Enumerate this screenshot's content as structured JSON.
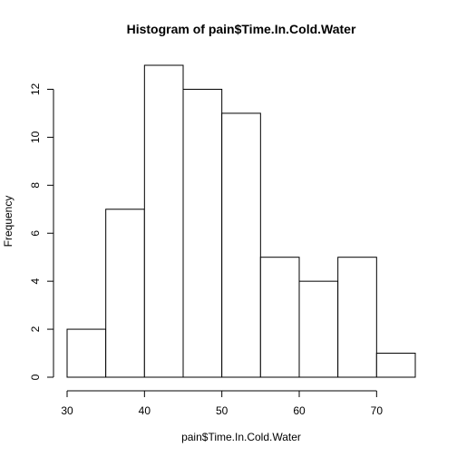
{
  "chart_data": {
    "type": "bar",
    "title": "Histogram of pain$Time.In.Cold.Water",
    "xlabel": "pain$Time.In.Cold.Water",
    "ylabel": "Frequency",
    "bins": [
      {
        "start": 30,
        "end": 35,
        "count": 2
      },
      {
        "start": 35,
        "end": 40,
        "count": 7
      },
      {
        "start": 40,
        "end": 45,
        "count": 13
      },
      {
        "start": 45,
        "end": 50,
        "count": 12
      },
      {
        "start": 50,
        "end": 55,
        "count": 11
      },
      {
        "start": 55,
        "end": 60,
        "count": 5
      },
      {
        "start": 60,
        "end": 65,
        "count": 4
      },
      {
        "start": 65,
        "end": 70,
        "count": 5
      },
      {
        "start": 70,
        "end": 75,
        "count": 1
      }
    ],
    "xlim": [
      30,
      75
    ],
    "ylim": [
      0,
      13
    ],
    "x_ticks": [
      30,
      40,
      50,
      60,
      70
    ],
    "y_ticks": [
      0,
      2,
      4,
      6,
      8,
      10,
      12
    ],
    "grid": false,
    "bar_fill": "#ffffff",
    "bar_stroke": "#000000"
  }
}
